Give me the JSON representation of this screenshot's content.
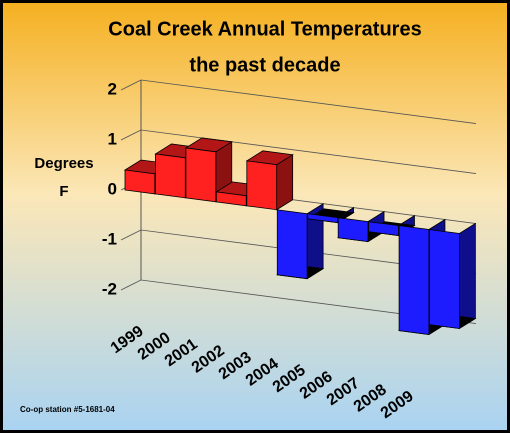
{
  "chart_data": {
    "type": "bar3d",
    "title": "Coal Creek Annual Temperatures",
    "subtitle": "the past decade",
    "ylabel": [
      "Degrees",
      "F"
    ],
    "note": "Co-op station #5-1681-04",
    "categories": [
      "1999",
      "2000",
      "2001",
      "2002",
      "2003",
      "2004",
      "2005",
      "2006",
      "2007",
      "2008",
      "2009"
    ],
    "values": [
      0.4,
      0.8,
      1.0,
      0.2,
      0.9,
      -1.3,
      -0.1,
      -0.4,
      -0.2,
      -2.1,
      -1.9
    ],
    "positive_color": "#ff2020",
    "negative_color": "#1c1cff",
    "ylim": [
      -2,
      2
    ],
    "yticks": [
      2,
      1,
      0,
      -1,
      -2
    ],
    "grid": true
  }
}
